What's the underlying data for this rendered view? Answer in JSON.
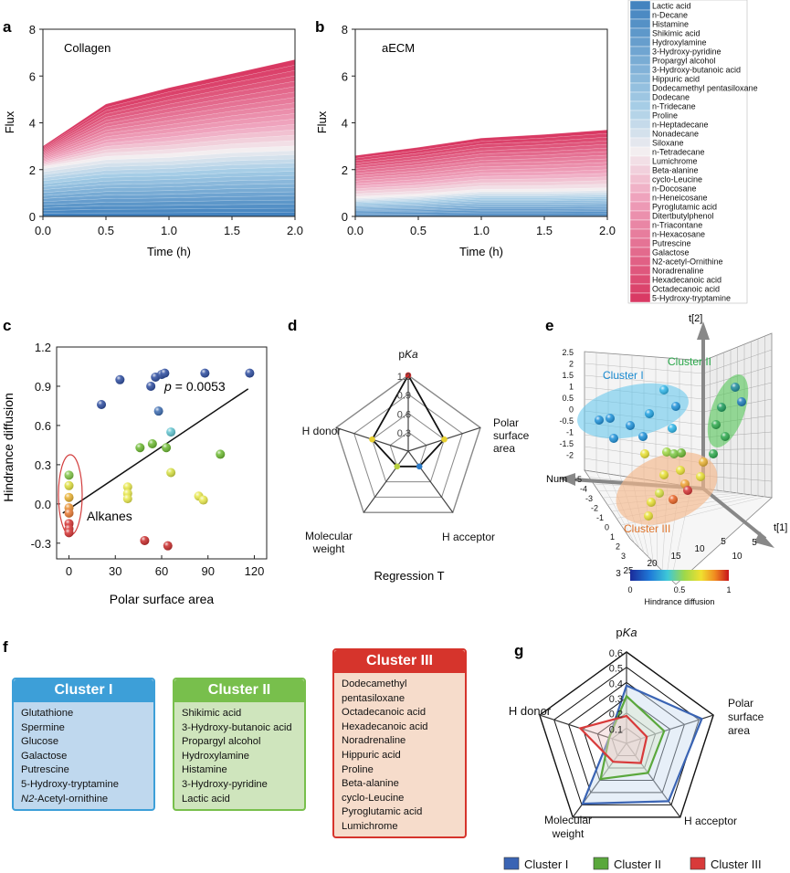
{
  "panel_letters": {
    "a": "a",
    "b": "b",
    "c": "c",
    "d": "d",
    "e": "e",
    "f": "f",
    "g": "g"
  },
  "chart_data": [
    {
      "panel": "a",
      "type": "area",
      "annotation": "Collagen",
      "xlabel": "Time (h)",
      "ylabel": "Flux",
      "x": [
        0,
        0.5,
        1.0,
        1.5,
        2.0
      ],
      "total": [
        3.0,
        4.8,
        5.5,
        6.1,
        6.7
      ],
      "blue_portion": [
        2.1,
        2.5,
        2.6,
        2.8,
        2.9
      ],
      "xlim": [
        0,
        2
      ],
      "ylim": [
        0,
        8
      ],
      "xticks": [
        "0.0",
        "0.5",
        "1.0",
        "1.5",
        "2.0"
      ],
      "yticks": [
        "0",
        "2",
        "4",
        "6",
        "8"
      ]
    },
    {
      "panel": "b",
      "type": "area",
      "annotation": "aECM",
      "xlabel": "Time (h)",
      "ylabel": "Flux",
      "x": [
        0,
        0.5,
        1.0,
        1.5,
        2.0
      ],
      "total": [
        2.6,
        2.95,
        3.35,
        3.5,
        3.7
      ],
      "blue_portion": [
        0.8,
        0.9,
        1.1,
        1.1,
        1.15
      ],
      "xlim": [
        0,
        2
      ],
      "ylim": [
        0,
        8
      ],
      "xticks": [
        "0.0",
        "0.5",
        "1.0",
        "1.5",
        "2.0"
      ],
      "yticks": [
        "0",
        "2",
        "4",
        "6",
        "8"
      ]
    },
    {
      "panel": "c",
      "type": "scatter",
      "xlabel": "Polar surface area",
      "ylabel": "Hindrance diffusion",
      "xlim": [
        -8,
        128
      ],
      "ylim": [
        -0.42,
        1.2
      ],
      "xticks": [
        "0",
        "30",
        "60",
        "90",
        "120"
      ],
      "yticks": [
        "-0.3",
        "0.0",
        "0.3",
        "0.6",
        "0.9",
        "1.2"
      ],
      "p_label": "p",
      "p_value": "= 0.0053",
      "annotation": "Alkanes",
      "fit_line": {
        "x": [
          -4,
          116
        ],
        "y": [
          -0.07,
          0.88
        ]
      },
      "points": [
        {
          "x": 33,
          "y": 0.95,
          "color": "#2a4a9e"
        },
        {
          "x": 21,
          "y": 0.76,
          "color": "#2a4a9e"
        },
        {
          "x": 53,
          "y": 0.9,
          "color": "#2a4a9e"
        },
        {
          "x": 56,
          "y": 0.97,
          "color": "#2a4a9e"
        },
        {
          "x": 60,
          "y": 0.99,
          "color": "#2a4a9e"
        },
        {
          "x": 62,
          "y": 1.0,
          "color": "#2a4a9e"
        },
        {
          "x": 88,
          "y": 1.0,
          "color": "#2a4a9e"
        },
        {
          "x": 117,
          "y": 1.0,
          "color": "#2a4a9e"
        },
        {
          "x": 58,
          "y": 0.71,
          "color": "#3a6ab0"
        },
        {
          "x": 66,
          "y": 0.55,
          "color": "#5fc3cf"
        },
        {
          "x": 46,
          "y": 0.43,
          "color": "#6ab82e"
        },
        {
          "x": 54,
          "y": 0.46,
          "color": "#6ab82e"
        },
        {
          "x": 63,
          "y": 0.43,
          "color": "#6ab82e"
        },
        {
          "x": 98,
          "y": 0.38,
          "color": "#6ab82e"
        },
        {
          "x": 0,
          "y": 0.22,
          "color": "#7cc242"
        },
        {
          "x": 0,
          "y": 0.14,
          "color": "#dede3c"
        },
        {
          "x": 38,
          "y": 0.13,
          "color": "#e8e84a"
        },
        {
          "x": 38,
          "y": 0.08,
          "color": "#e8e84a"
        },
        {
          "x": 38,
          "y": 0.04,
          "color": "#e8e84a"
        },
        {
          "x": 66,
          "y": 0.24,
          "color": "#d6e040"
        },
        {
          "x": 84,
          "y": 0.06,
          "color": "#e8e84a"
        },
        {
          "x": 87,
          "y": 0.03,
          "color": "#e8e84a"
        },
        {
          "x": 0,
          "y": 0.05,
          "color": "#e8b030"
        },
        {
          "x": 0,
          "y": -0.03,
          "color": "#e89030"
        },
        {
          "x": 0,
          "y": -0.07,
          "color": "#e87830"
        },
        {
          "x": 0,
          "y": -0.15,
          "color": "#d43030"
        },
        {
          "x": 0,
          "y": -0.19,
          "color": "#d43030"
        },
        {
          "x": 0,
          "y": -0.22,
          "color": "#d43030"
        },
        {
          "x": 49,
          "y": -0.28,
          "color": "#c82828"
        },
        {
          "x": 64,
          "y": -0.32,
          "color": "#c82828"
        }
      ]
    },
    {
      "panel": "d",
      "type": "radar",
      "axes": [
        "pKa",
        "Polar surface area",
        "H acceptor",
        "Molecular weight",
        "H donor"
      ],
      "ring_labels": [
        "0.3",
        "0.6",
        "0.9",
        "1.2"
      ],
      "rings": [
        0.3,
        0.6,
        0.9,
        1.2
      ],
      "max": 1.3,
      "values": [
        1.2,
        0.6,
        0.3,
        0.3,
        0.6
      ],
      "marker_colors": [
        "#d42a2a",
        "#e8d030",
        "#2a7ac8",
        "#b8d040",
        "#e8d030"
      ],
      "caption": "Regression T"
    },
    {
      "panel": "e",
      "type": "scatter",
      "z_axis_label": "t[2]",
      "x_axis_label": "t[1]",
      "y_axis_label": "Num",
      "zticks": [
        "2.5",
        "2",
        "1.5",
        "1",
        "0.5",
        "0",
        "-0.5",
        "-1",
        "-1.5",
        "-2"
      ],
      "yticks": [
        "-5",
        "-4",
        "-3",
        "-2",
        "-1",
        "0",
        "1",
        "2",
        "3"
      ],
      "floor_ticks": [
        "25",
        "20",
        "15",
        "10",
        "5"
      ],
      "floor_x_ticks": [
        "10",
        "5"
      ],
      "clusters": [
        "Cluster I",
        "Cluster II",
        "Cluster III"
      ],
      "colorbar_ticks": [
        "0",
        "0.5",
        "1"
      ],
      "colorbar_label": "Hindrance diffusion"
    },
    {
      "panel": "g",
      "type": "radar",
      "axes": [
        "pKa",
        "Polar surface area",
        "H acceptor",
        "Molecular weight",
        "H donor"
      ],
      "ring_labels": [
        "0.1",
        "0.2",
        "0.3",
        "0.4",
        "0.5",
        "0.6"
      ],
      "rings": [
        0.1,
        0.2,
        0.3,
        0.4,
        0.5,
        0.6
      ],
      "max": 0.6,
      "series": [
        {
          "name": "Cluster I",
          "color": "#3a64b4",
          "values": [
            0.38,
            0.52,
            0.47,
            0.49,
            0.12
          ]
        },
        {
          "name": "Cluster II",
          "color": "#5aa83c",
          "values": [
            0.31,
            0.26,
            0.24,
            0.29,
            0.12
          ]
        },
        {
          "name": "Cluster III",
          "color": "#d83a3a",
          "values": [
            0.18,
            0.14,
            0.16,
            0.15,
            0.32
          ]
        }
      ]
    }
  ],
  "legend_ab": {
    "items": [
      "Lactic acid",
      "n-Decane",
      "Histamine",
      "Shikimic acid",
      "Hydroxylamine",
      "3-Hydroxy-pyridine",
      "Propargyl alcohol",
      "3-Hydroxy-butanoic acid",
      "Hippuric acid",
      "Dodecamethyl pentasiloxane",
      "Dodecane",
      "n-Tridecane",
      "Proline",
      "n-Heptadecane",
      "Nonadecane",
      "Siloxane",
      "n-Tetradecane",
      "Lumichrome",
      "Beta-alanine",
      "cyclo-Leucine",
      "n-Docosane",
      "n-Heneicosane",
      "Pyroglutamic acid",
      "Ditertbutylphenol",
      "n-Triacontane",
      "n-Hexacosane",
      "Putrescine",
      "Galactose",
      "N2-acetyl-Ornithine",
      "Noradrenaline",
      "Hexadecanoic acid",
      "Octadecanoic acid",
      "5-Hydroxy-tryptamine"
    ]
  },
  "cluster_boxes": {
    "cluster1": {
      "title": "Cluster I",
      "items": [
        "Glutathione",
        "Spermine",
        "Glucose",
        "Galactose",
        "Putrescine",
        "5-Hydroxy-tryptamine"
      ],
      "italic_item_prefix": "N2",
      "italic_item_suffix": "-Acetyl-ornithine"
    },
    "cluster2": {
      "title": "Cluster II",
      "items": [
        "Shikimic acid",
        "3-Hydroxy-butanoic acid",
        "Propargyl alcohol",
        "Hydroxylamine",
        "Histamine",
        "3-Hydroxy-pyridine",
        "Lactic acid"
      ]
    },
    "cluster3": {
      "title": "Cluster III",
      "items": [
        "Dodecamethyl",
        "pentasiloxane",
        "Octadecanoic acid",
        "Hexadecanoic acid",
        "Noradrenaline",
        "Hippuric acid",
        "Proline",
        "Beta-alanine",
        "cyclo-Leucine",
        "Pyroglutamic acid",
        "Lumichrome"
      ]
    }
  },
  "colors": {
    "blue_low": "#3d7fbd",
    "blue_mid": "#a6cde6",
    "white_mid": "#f3eef0",
    "pink_mid": "#efa3bd",
    "red_high": "#d8345f",
    "cluster1_head": "#3d9fd8",
    "cluster1_body": "#bfd8ee",
    "cluster2_head": "#78bf4c",
    "cluster2_body": "#cfe5bd",
    "cluster3_head": "#d6342c",
    "cluster3_body": "#f6dccb"
  }
}
